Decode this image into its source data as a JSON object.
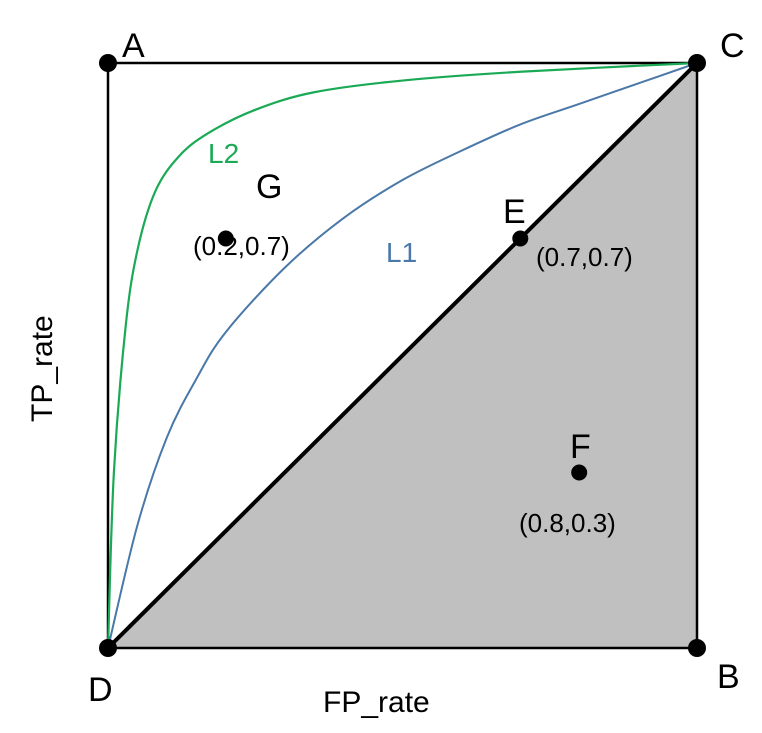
{
  "chart_data": {
    "type": "line",
    "xlabel": "FP_rate",
    "ylabel": "TP_rate",
    "xlim": [
      0,
      1
    ],
    "ylim": [
      0,
      1
    ],
    "grid": false,
    "colors": {
      "L1": "#4a78a8",
      "L2": "#1aaa55",
      "diagonal": "#000000",
      "shade": "#c0c0c0"
    },
    "corners": [
      {
        "label": "A",
        "x": 0,
        "y": 1
      },
      {
        "label": "B",
        "x": 1,
        "y": 0
      },
      {
        "label": "C",
        "x": 1,
        "y": 1
      },
      {
        "label": "D",
        "x": 0,
        "y": 0
      }
    ],
    "points": [
      {
        "label": "G",
        "x": 0.2,
        "y": 0.7,
        "coord": "(0.2,0.7)"
      },
      {
        "label": "E",
        "x": 0.7,
        "y": 0.7,
        "coord": "(0.7,0.7)"
      },
      {
        "label": "F",
        "x": 0.8,
        "y": 0.3,
        "coord": "(0.8,0.3)"
      }
    ],
    "series": [
      {
        "name": "L2",
        "x": [
          0,
          0.01,
          0.03,
          0.05,
          0.08,
          0.12,
          0.17,
          0.25,
          0.35,
          0.5,
          0.7,
          1.0
        ],
        "y": [
          0,
          0.3,
          0.55,
          0.68,
          0.78,
          0.84,
          0.88,
          0.92,
          0.95,
          0.97,
          0.985,
          1.0
        ]
      },
      {
        "name": "L1",
        "x": [
          0,
          0.05,
          0.1,
          0.15,
          0.2,
          0.3,
          0.4,
          0.5,
          0.6,
          0.7,
          0.8,
          0.9,
          1.0
        ],
        "y": [
          0,
          0.21,
          0.36,
          0.46,
          0.54,
          0.65,
          0.735,
          0.8,
          0.85,
          0.895,
          0.93,
          0.965,
          1.0
        ]
      },
      {
        "name": "diagonal",
        "x": [
          0,
          1
        ],
        "y": [
          0,
          1
        ]
      }
    ]
  }
}
